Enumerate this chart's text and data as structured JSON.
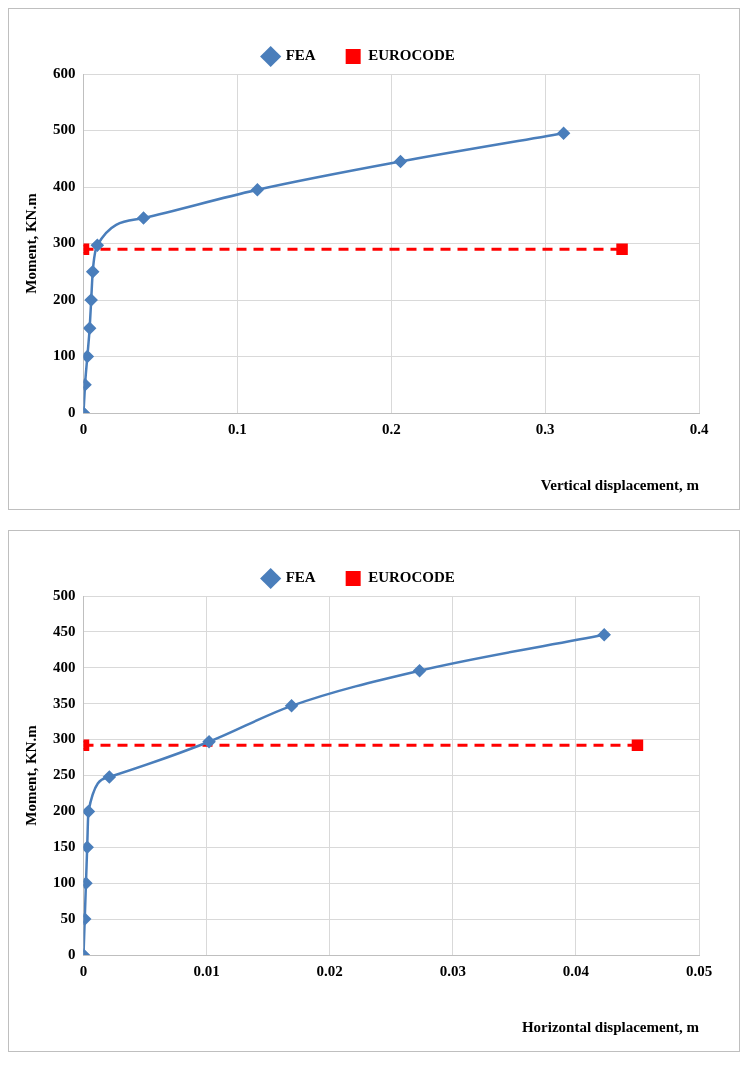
{
  "chart_data": [
    {
      "type": "line",
      "xlabel": "Vertical displacement, m",
      "ylabel": "Moment, KN.m",
      "xlim": [
        0,
        0.4
      ],
      "xticks": [
        0,
        0.1,
        0.2,
        0.3,
        0.4
      ],
      "ylim": [
        0,
        600
      ],
      "yticks": [
        0,
        100,
        200,
        300,
        400,
        500,
        600
      ],
      "grid": true,
      "legend": "top",
      "series": [
        {
          "name": "FEA",
          "color": "#4a7ebb",
          "marker": "diamond",
          "line_style": "solid",
          "x": [
            0,
            0.001,
            0.0025,
            0.004,
            0.005,
            0.006,
            0.009,
            0.039,
            0.113,
            0.206,
            0.312
          ],
          "values": [
            0,
            50,
            100,
            150,
            200,
            250,
            297,
            345,
            395,
            445,
            495
          ]
        },
        {
          "name": "EUROCODE",
          "color": "#ff0000",
          "marker": "square",
          "line_style": "dashed",
          "x": [
            0,
            0.35
          ],
          "values": [
            290,
            290
          ]
        }
      ]
    },
    {
      "type": "line",
      "xlabel": "Horizontal displacement, m",
      "ylabel": "Moment, KN.m",
      "xlim": [
        0,
        0.05
      ],
      "xticks": [
        0,
        0.01,
        0.02,
        0.03,
        0.04,
        0.05
      ],
      "ylim": [
        0,
        500
      ],
      "yticks": [
        0,
        50,
        100,
        150,
        200,
        250,
        300,
        350,
        400,
        450,
        500
      ],
      "grid": true,
      "legend": "top",
      "series": [
        {
          "name": "FEA",
          "color": "#4a7ebb",
          "marker": "diamond",
          "line_style": "solid",
          "x": [
            0,
            0.0001,
            0.0002,
            0.0003,
            0.0004,
            0.0021,
            0.0102,
            0.0169,
            0.0273,
            0.0423
          ],
          "values": [
            0,
            50,
            100,
            150,
            200,
            248,
            297,
            347,
            396,
            446
          ]
        },
        {
          "name": "EUROCODE",
          "color": "#ff0000",
          "marker": "square",
          "line_style": "dashed",
          "x": [
            0,
            0.045
          ],
          "values": [
            292,
            292
          ]
        }
      ]
    }
  ]
}
